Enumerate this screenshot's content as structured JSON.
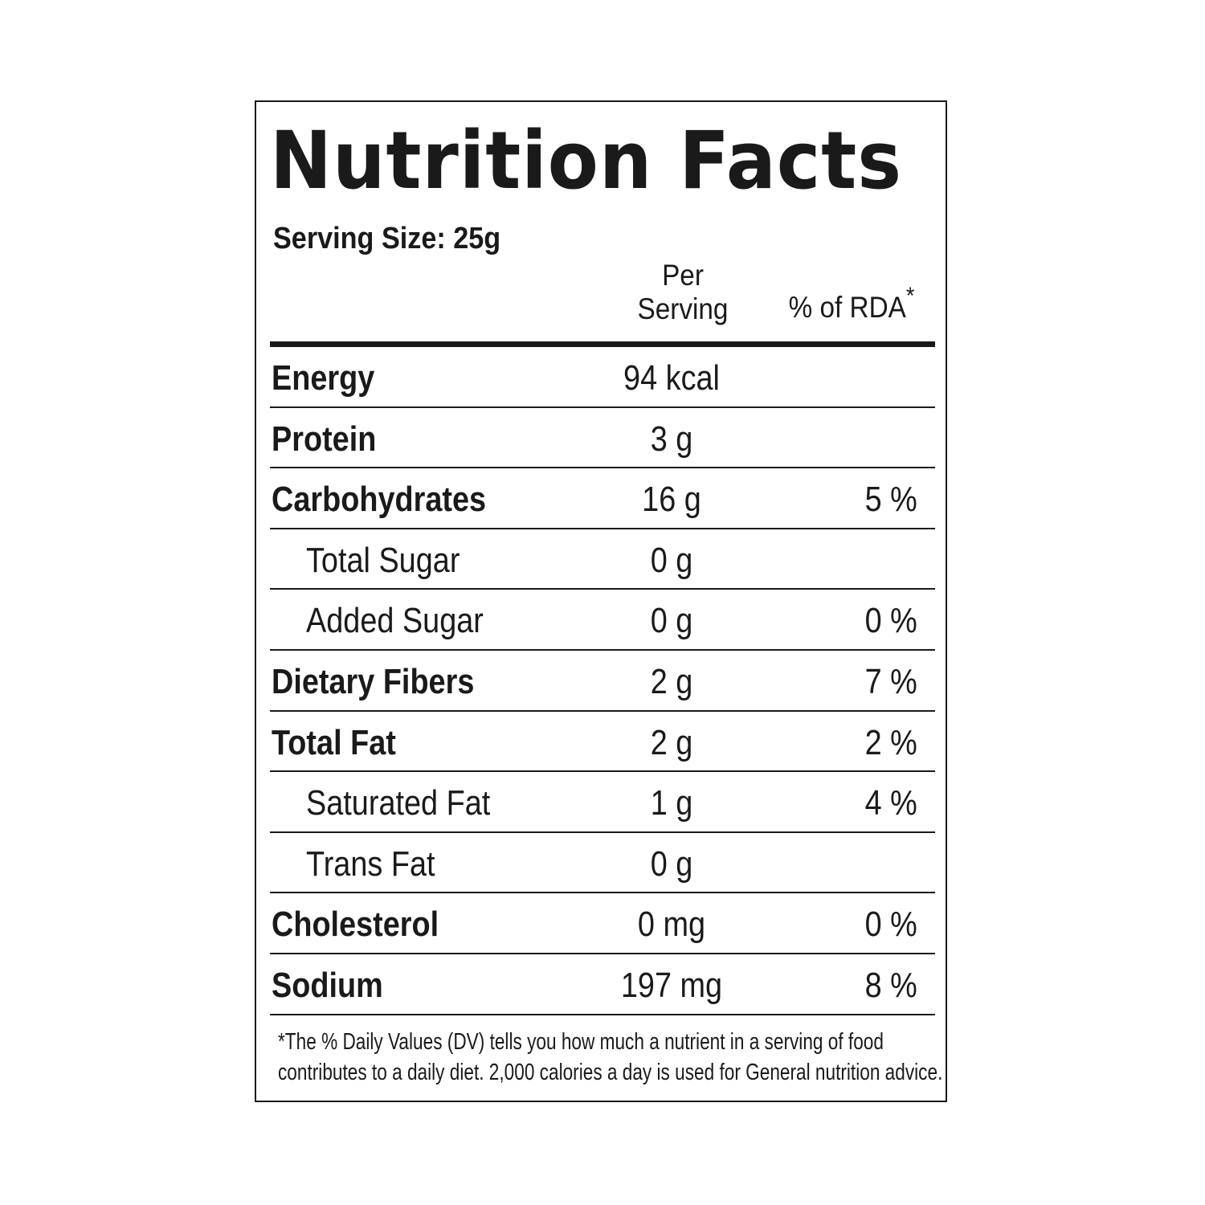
{
  "title": "Nutrition Facts",
  "serving_size": "Serving Size: 25g",
  "columns": {
    "per_serving_line1": "Per",
    "per_serving_line2": "Serving",
    "rda": "% of RDA",
    "rda_mark": "*"
  },
  "rows": [
    {
      "name": "Energy",
      "amount": "94 kcal",
      "rda": "",
      "bold": true
    },
    {
      "name": "Protein",
      "amount": "3 g",
      "rda": "",
      "bold": true
    },
    {
      "name": "Carbohydrates",
      "amount": "16 g",
      "rda": "5 %",
      "bold": true
    },
    {
      "name": "Total Sugar",
      "amount": "0 g",
      "rda": "",
      "bold": false
    },
    {
      "name": "Added Sugar",
      "amount": "0 g",
      "rda": "0 %",
      "bold": false
    },
    {
      "name": "Dietary Fibers",
      "amount": "2 g",
      "rda": "7 %",
      "bold": true
    },
    {
      "name": "Total Fat",
      "amount": "2 g",
      "rda": "2 %",
      "bold": true
    },
    {
      "name": "Saturated Fat",
      "amount": "1 g",
      "rda": "4 %",
      "bold": false
    },
    {
      "name": "Trans Fat",
      "amount": "0 g",
      "rda": "",
      "bold": false
    },
    {
      "name": "Cholesterol",
      "amount": "0 mg",
      "rda": "0 %",
      "bold": true
    },
    {
      "name": "Sodium",
      "amount": "197 mg",
      "rda": "8 %",
      "bold": true
    }
  ],
  "footnote": {
    "line1": "*The % Daily Values (DV) tells you how much a nutrient in a serving of food",
    "line2": "contributes to a daily diet. 2,000 calories a day is used for General nutrition advice."
  }
}
